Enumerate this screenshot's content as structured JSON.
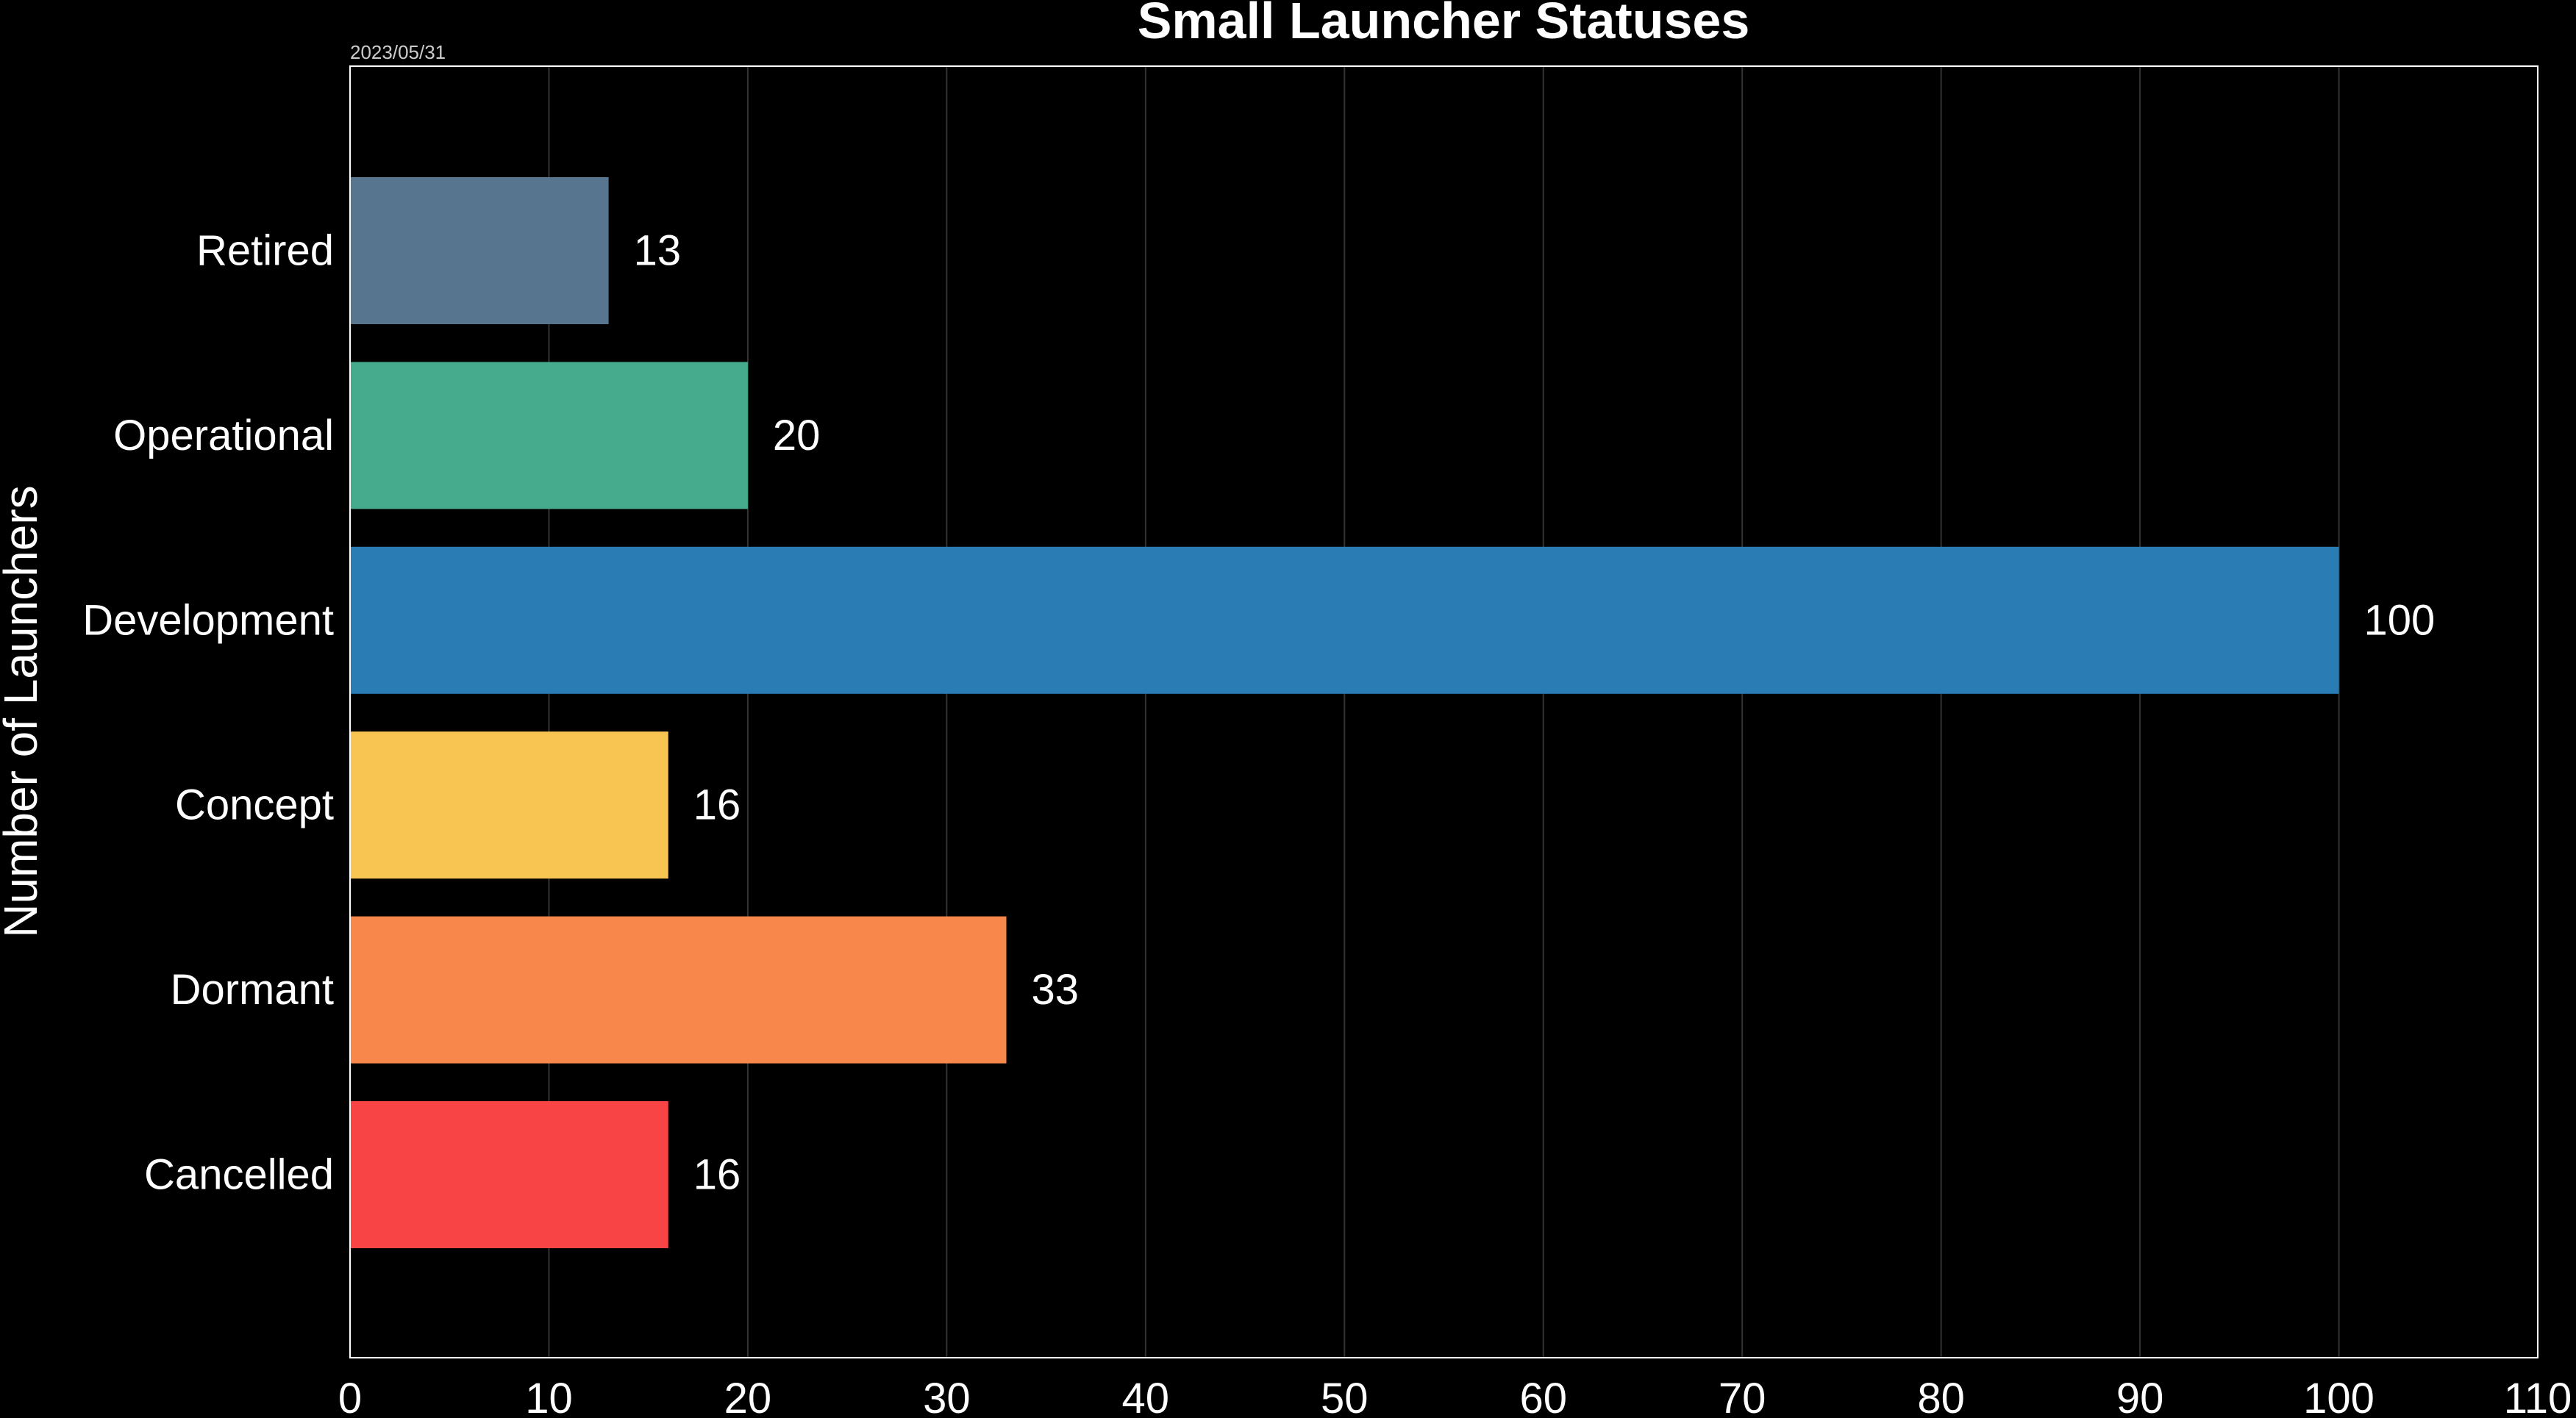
{
  "chart_data": {
    "type": "bar",
    "orientation": "horizontal",
    "title": "Small Launcher Statuses",
    "date": "2023/05/31",
    "xlabel": "",
    "ylabel": "Number of Launchers",
    "xlim": [
      0,
      110
    ],
    "xticks": [
      0,
      10,
      20,
      30,
      40,
      50,
      60,
      70,
      80,
      90,
      100,
      110
    ],
    "grid": "vertical",
    "categories": [
      "Retired",
      "Operational",
      "Development",
      "Concept",
      "Dormant",
      "Cancelled"
    ],
    "values": [
      13,
      20,
      100,
      16,
      33,
      16
    ],
    "colors": [
      "#58758f",
      "#46ab8c",
      "#2a7cb5",
      "#f8c552",
      "#f8874c",
      "#f84444"
    ],
    "background": "#000000"
  }
}
